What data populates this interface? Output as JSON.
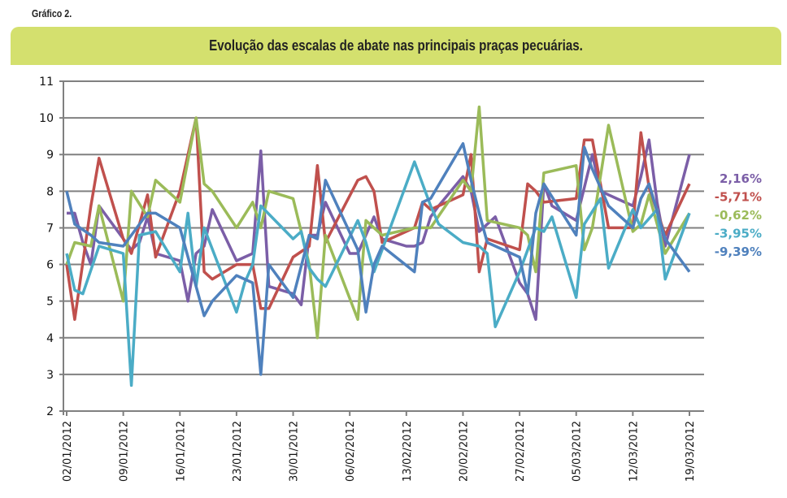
{
  "figure_label": "Gráfico 2.",
  "chart_data": {
    "type": "line",
    "title": "Evolução das escalas de abate nas principais praças pecuárias.",
    "xlabel": "",
    "ylabel": "",
    "ylim": [
      2,
      11
    ],
    "yticks": [
      "2",
      "3",
      "4",
      "5",
      "6",
      "7",
      "8",
      "9",
      "10",
      "11"
    ],
    "grid": true,
    "legend_position": "right",
    "x_tick_labels": [
      "02/01/2012",
      "09/01/2012",
      "16/01/2012",
      "23/01/2012",
      "30/01/2012",
      "06/02/2012",
      "13/02/2012",
      "20/02/2012",
      "27/02/2012",
      "05/03/2012",
      "12/03/2012",
      "19/03/2012"
    ],
    "x_day_offsets": [
      0,
      1,
      2,
      3,
      4,
      7,
      8,
      9,
      10,
      11,
      14,
      15,
      16,
      17,
      18,
      21,
      22,
      23,
      24,
      25,
      28,
      29,
      30,
      31,
      32,
      35,
      36,
      37,
      38,
      39,
      42,
      43,
      44,
      45,
      46,
      49,
      50,
      51,
      52,
      53,
      56,
      57,
      58,
      59,
      60,
      63,
      64,
      65,
      66,
      67,
      70,
      71,
      72,
      73,
      74,
      77
    ],
    "series": [
      {
        "name": "2,16%",
        "color": "#7b5ea7",
        "values": [
          7.4,
          7.4,
          6.6,
          6.0,
          7.6,
          6.4,
          6.6,
          7.3,
          6.3,
          6.1,
          5.0,
          6.3,
          6.5,
          7.5,
          6.1,
          6.3,
          9.1,
          5.4,
          5.2,
          4.9,
          6.8,
          6.8,
          7.7,
          6.3,
          6.3,
          7.3,
          6.7,
          6.5,
          6.5,
          6.6,
          7.3,
          7.6,
          8.4,
          8.0,
          6.9,
          7.3,
          5.5,
          5.2,
          4.5,
          8.2,
          7.6,
          7.2,
          8.1,
          9.0,
          8.0,
          7.6,
          8.4,
          9.4,
          7.7,
          6.5,
          9.0
        ]
      },
      {
        "name": "-5,71%",
        "color": "#c0504d",
        "values": [
          6.0,
          4.5,
          7.6,
          8.9,
          6.7,
          6.3,
          7.9,
          6.2,
          8.0,
          10.0,
          5.8,
          5.6,
          6.0,
          6.0,
          4.8,
          4.8,
          6.2,
          6.5,
          8.7,
          6.6,
          8.3,
          8.4,
          8.0,
          6.6,
          7.0,
          7.7,
          7.5,
          7.9,
          9.0,
          5.8,
          6.7,
          6.4,
          8.2,
          8.0,
          7.7,
          7.8,
          9.4,
          9.4,
          7.0,
          7.0,
          9.6,
          8.1,
          6.8,
          8.2
        ]
      },
      {
        "name": "-0,62%",
        "color": "#9bbb59",
        "values": [
          6.0,
          6.6,
          6.5,
          7.6,
          5.0,
          8.0,
          7.3,
          8.3,
          7.7,
          10.0,
          8.2,
          8.0,
          7.0,
          7.7,
          7.0,
          8.0,
          7.8,
          6.0,
          4.0,
          6.8,
          4.5,
          7.2,
          7.0,
          6.8,
          7.0,
          7.0,
          7.0,
          8.3,
          8.0,
          10.3,
          7.2,
          7.0,
          6.8,
          5.8,
          8.5,
          8.7,
          6.4,
          7.0,
          9.8,
          6.9,
          7.1,
          7.9,
          6.3,
          7.4
        ]
      },
      {
        "name": "-3,95%",
        "color": "#4bacc6",
        "values": [
          6.3,
          5.3,
          5.2,
          6.5,
          6.3,
          2.7,
          6.8,
          6.9,
          5.8,
          7.4,
          5.4,
          7.0,
          4.7,
          5.5,
          6.0,
          7.6,
          6.7,
          6.9,
          5.9,
          5.6,
          5.4,
          7.2,
          6.6,
          5.8,
          6.4,
          8.8,
          8.2,
          7.6,
          7.1,
          6.6,
          6.5,
          6.3,
          4.3,
          5.8,
          7.0,
          6.9,
          7.3,
          5.1,
          7.1,
          7.8,
          5.9,
          7.5,
          7.0,
          7.5,
          5.6,
          7.4
        ]
      },
      {
        "name": "-9,39%",
        "color": "#4f81bd",
        "values": [
          8.0,
          7.1,
          6.8,
          6.6,
          6.5,
          6.8,
          7.4,
          7.4,
          7.0,
          5.4,
          4.6,
          5.0,
          5.7,
          5.5,
          3.0,
          6.0,
          5.1,
          6.8,
          6.7,
          8.3,
          6.4,
          4.7,
          6.0,
          6.5,
          5.8,
          7.7,
          7.8,
          9.3,
          8.3,
          7.4,
          6.6,
          6.2,
          5.2,
          7.4,
          8.2,
          6.8,
          9.2,
          8.6,
          7.6,
          7.0,
          7.8,
          8.2,
          6.7,
          5.8
        ]
      }
    ]
  }
}
